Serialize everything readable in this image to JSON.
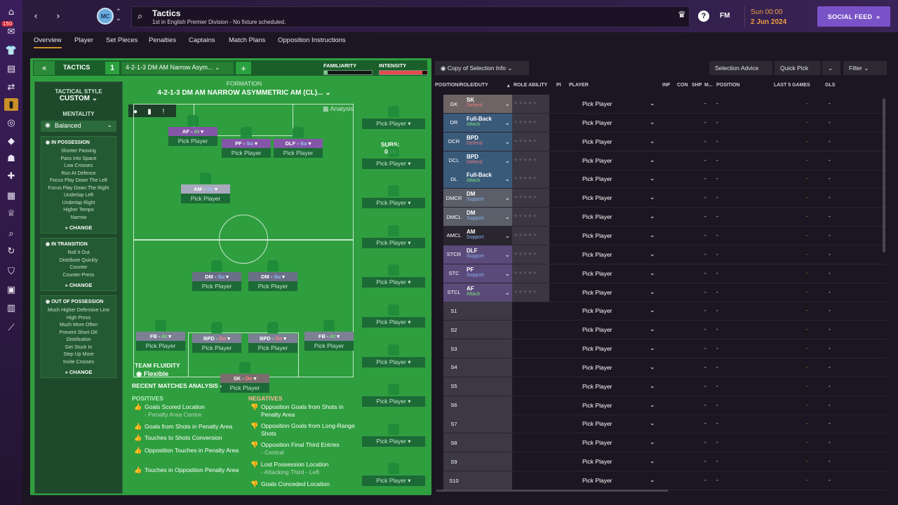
{
  "nav": {
    "badge": "150"
  },
  "header": {
    "title": "Tactics",
    "subtitle": "1st in English Premier Division - No fixture scheduled.",
    "fm": "FM",
    "date_line1": "Sun 00:00",
    "date_line2": "2 Jun 2024",
    "social": "SOCIAL FEED",
    "help": "?",
    "crest": "MC"
  },
  "tabs": [
    "Overview",
    "Player",
    "Set Pieces",
    "Penalties",
    "Captains",
    "Match Plans",
    "Opposition Instructions"
  ],
  "tactic": {
    "label": "TACTICS",
    "number": "1",
    "name": "4-2-1-3 DM AM Narrow Asym...",
    "familiarity_label": "FAMILIARITY",
    "intensity_label": "INTENSITY",
    "familiarity": 0.08,
    "intensity": 0.9,
    "style_label": "TACTICAL STYLE",
    "style_value": "CUSTOM",
    "mentality_label": "MENTALITY",
    "mentality": "Balanced",
    "in_possession": {
      "title": "IN POSSESSION",
      "items": [
        "Shorter Passing",
        "Pass Into Space",
        "Low Crosses",
        "Run At Defence",
        "Focus Play Down The Left",
        "Focus Play Down The Right",
        "Underlap Left",
        "Underlap Right",
        "Higher Tempo",
        "Narrow"
      ],
      "change": "CHANGE"
    },
    "in_transition": {
      "title": "IN TRANSITION",
      "items": [
        "Roll It Out",
        "Distribute Quickly",
        "Counter",
        "Counter-Press"
      ],
      "change": "CHANGE"
    },
    "out_of_possession": {
      "title": "OUT OF POSSESSION",
      "items": [
        "Much Higher Defensive Line",
        "High Press",
        "Much More Often",
        "Prevent Short GK",
        "Distribution",
        "Get Stuck In",
        "Step Up More",
        "Invite Crosses"
      ],
      "change": "CHANGE"
    },
    "formation_label": "FORMATION",
    "formation": "4-2-1-3 DM AM NARROW ASYMMETRIC AM (CL)...",
    "analysis": "Analysis",
    "fluidity_label": "TEAM FLUIDITY",
    "fluidity": "Flexible",
    "subs_label": "SUBS:",
    "subs_count": "0/15",
    "pick": "Pick Player"
  },
  "pitch_players": [
    {
      "role": "AF",
      "duty": "At",
      "cls": "att"
    },
    {
      "role": "PF",
      "duty": "Su",
      "cls": "att"
    },
    {
      "role": "DLF",
      "duty": "Su",
      "cls": "att"
    },
    {
      "role": "AM",
      "duty": "Su",
      "cls": "am"
    },
    {
      "role": "DM",
      "duty": "Su",
      "cls": "sup"
    },
    {
      "role": "DM",
      "duty": "Su",
      "cls": "sup"
    },
    {
      "role": "FB",
      "duty": "At",
      "cls": "def"
    },
    {
      "role": "BPD",
      "duty": "De",
      "cls": "def"
    },
    {
      "role": "BPD",
      "duty": "De",
      "cls": "def"
    },
    {
      "role": "FB",
      "duty": "At",
      "cls": "def"
    },
    {
      "role": "SK",
      "duty": "De",
      "cls": "gk"
    }
  ],
  "analysis_section": {
    "title": "RECENT MATCHES ANALYSIS",
    "positives_label": "POSITIVES",
    "negatives_label": "NEGATIVES",
    "positives": [
      {
        "t": "Goals Scored Location",
        "s": "- Penalty Area Centre"
      },
      {
        "t": "Goals from Shots in Penalty Area",
        "s": ""
      },
      {
        "t": "Touches to Shots Conversion",
        "s": ""
      },
      {
        "t": "Opposition Touches in Penalty Area",
        "s": ""
      },
      {
        "t": "Touches in Opposition Penalty Area",
        "s": ""
      }
    ],
    "negatives": [
      {
        "t": "Opposition Goals from Shots in Penalty Area",
        "s": ""
      },
      {
        "t": "Opposition Goals from Long-Range Shots",
        "s": ""
      },
      {
        "t": "Opposition Final Third Entries",
        "s": "- Central"
      },
      {
        "t": "Lost Possession Location",
        "s": "- Attacking Third - Left"
      },
      {
        "t": "Goals Conceded Location",
        "s": ""
      }
    ]
  },
  "right": {
    "copy_btn": "Copy of Selection Info",
    "advice_btn": "Selection Advice",
    "quick_btn": "Quick Pick",
    "filter_btn": "Filter",
    "columns": {
      "pos": "POSITION/ROLE/DUTY",
      "ra": "ROLE ABILITY",
      "pi": "PI",
      "player": "PLAYER",
      "inf": "INF",
      "con": "CON",
      "shp": "SHP",
      "m": "M...",
      "position": "POSITION",
      "last5": "LAST 5 GAMES",
      "gls": "GLS"
    },
    "rows": [
      {
        "pos": "GK",
        "role": "SK",
        "duty": "Defend",
        "d": "def",
        "bg": "gk"
      },
      {
        "pos": "DR",
        "role": "Full-Back",
        "duty": "Attack",
        "d": "att",
        "bg": "def"
      },
      {
        "pos": "DCR",
        "role": "BPD",
        "duty": "Defend",
        "d": "def",
        "bg": "def"
      },
      {
        "pos": "DCL",
        "role": "BPD",
        "duty": "Defend",
        "d": "def",
        "bg": "def"
      },
      {
        "pos": "DL",
        "role": "Full-Back",
        "duty": "Attack",
        "d": "att",
        "bg": "def"
      },
      {
        "pos": "DMCR",
        "role": "DM",
        "duty": "Support",
        "d": "sup",
        "bg": "mid"
      },
      {
        "pos": "DMCL",
        "role": "DM",
        "duty": "Support",
        "d": "sup",
        "bg": "mid"
      },
      {
        "pos": "AMCL",
        "role": "AM",
        "duty": "Support",
        "d": "sup",
        "bg": "am"
      },
      {
        "pos": "STCR",
        "role": "DLF",
        "duty": "Support",
        "d": "sup",
        "bg": "st"
      },
      {
        "pos": "STC",
        "role": "PF",
        "duty": "Support",
        "d": "sup",
        "bg": "st"
      },
      {
        "pos": "STCL",
        "role": "AF",
        "duty": "Attack",
        "d": "att",
        "bg": "st"
      },
      {
        "pos": "S1",
        "role": "",
        "duty": "",
        "d": "",
        "bg": "s"
      },
      {
        "pos": "S2",
        "role": "",
        "duty": "",
        "d": "",
        "bg": "s"
      },
      {
        "pos": "S3",
        "role": "",
        "duty": "",
        "d": "",
        "bg": "s"
      },
      {
        "pos": "S4",
        "role": "",
        "duty": "",
        "d": "",
        "bg": "s"
      },
      {
        "pos": "S5",
        "role": "",
        "duty": "",
        "d": "",
        "bg": "s"
      },
      {
        "pos": "S6",
        "role": "",
        "duty": "",
        "d": "",
        "bg": "s"
      },
      {
        "pos": "S7",
        "role": "",
        "duty": "",
        "d": "",
        "bg": "s"
      },
      {
        "pos": "S8",
        "role": "",
        "duty": "",
        "d": "",
        "bg": "s"
      },
      {
        "pos": "S9",
        "role": "",
        "duty": "",
        "d": "",
        "bg": "s"
      },
      {
        "pos": "S10",
        "role": "",
        "duty": "",
        "d": "",
        "bg": "s"
      }
    ],
    "dash": "-",
    "last5": "-"
  }
}
